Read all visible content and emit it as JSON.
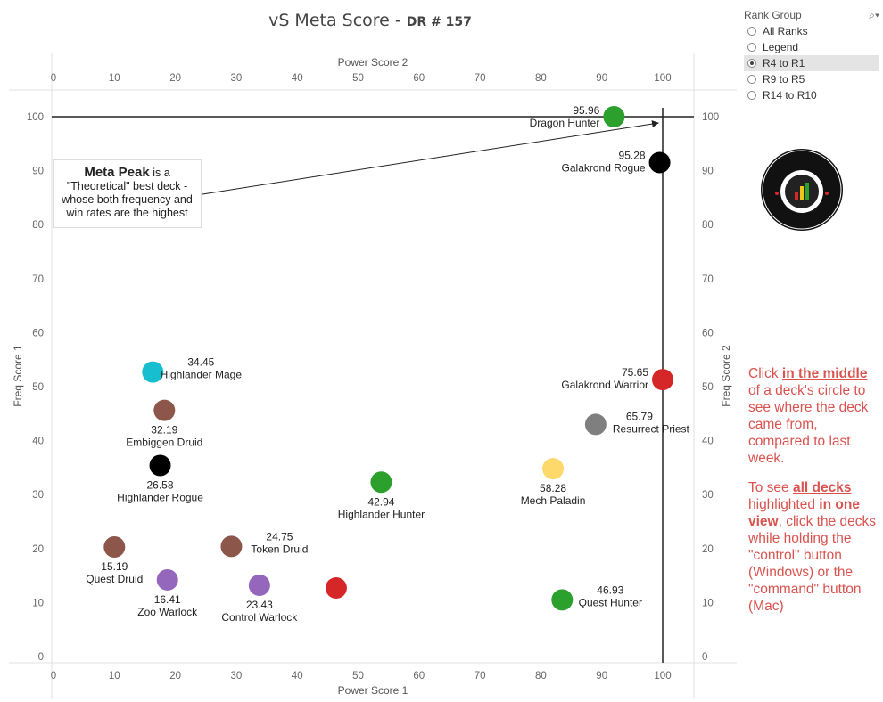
{
  "title": {
    "main": "vS Meta Score - ",
    "sub": "DR # 157"
  },
  "rank_group": {
    "label": "Rank Group",
    "options": [
      "All Ranks",
      "Legend",
      "R4 to R1",
      "R9 to R5",
      "R14 to R10"
    ],
    "selected": "R4 to R1"
  },
  "callout": {
    "strong": "Meta Peak",
    "text_after": " is a",
    "line2": "\"Theoretical\" best deck -",
    "line3": "whose both frequency and",
    "line4": "win rates are the highest"
  },
  "notes": {
    "p1_pre": "Click ",
    "p1_bold": "in the middle",
    "p1_post": " of a deck's circle to see where the deck came from, compared to last week.",
    "p2_pre": "To see ",
    "p2_bold1": "all decks",
    "p2_mid": " highlighted ",
    "p2_bold2": "in one view",
    "p2_post": ", click the decks while holding the \"control\" button (Windows) or the \"command\" button (Mac)"
  },
  "colors": {
    "hunter": "#2ca02c",
    "rogue": "#000000",
    "warrior": "#d62728",
    "priest": "#7f7f7f",
    "paladin": "#fdd86a",
    "mage": "#17becf",
    "druid": "#8c564b",
    "warlock": "#9467bd",
    "notes": "#d9534f"
  },
  "chart_data": {
    "type": "scatter",
    "title": "vS Meta Score - DR # 157",
    "xlabel_bottom": "Power Score 1",
    "xlabel_top": "Power Score 2",
    "ylabel_left": "Freq Score 1",
    "ylabel_right": "Freq Score 2",
    "xlim": [
      -5,
      105
    ],
    "ylim": [
      -1,
      105
    ],
    "xticks": [
      0,
      10,
      20,
      30,
      40,
      50,
      60,
      70,
      80,
      90,
      100
    ],
    "yticks": [
      0,
      10,
      20,
      30,
      40,
      50,
      60,
      70,
      80,
      90,
      100
    ],
    "reference_lines": {
      "x": 100,
      "y": 100
    },
    "points": [
      {
        "name": "Dragon Hunter",
        "score": "95.96",
        "x": 92,
        "y": 100,
        "color": "hunter",
        "label_side": "left-top"
      },
      {
        "name": "Galakrond Rogue",
        "score": "95.28",
        "x": 99.5,
        "y": 91.5,
        "color": "rogue",
        "label_side": "left"
      },
      {
        "name": "Galakrond Warrior",
        "score": "75.65",
        "x": 100,
        "y": 51.3,
        "color": "warrior",
        "label_side": "left"
      },
      {
        "name": "Resurrect Priest",
        "score": "65.79",
        "x": 89,
        "y": 43,
        "color": "priest",
        "label_side": "right-below"
      },
      {
        "name": "Mech Paladin",
        "score": "58.28",
        "x": 82,
        "y": 34.8,
        "color": "paladin",
        "label_side": "below"
      },
      {
        "name": "Highlander Hunter",
        "score": "42.94",
        "x": 53.8,
        "y": 32.3,
        "color": "hunter",
        "label_side": "below"
      },
      {
        "name": "Quest Hunter",
        "score": "46.93",
        "x": 83.5,
        "y": 10.5,
        "color": "hunter",
        "label_side": "right"
      },
      {
        "name": "Highlander Mage",
        "score": "34.45",
        "x": 16.3,
        "y": 52.7,
        "color": "mage",
        "label_side": "right"
      },
      {
        "name": "Embiggen Druid",
        "score": "32.19",
        "x": 18.2,
        "y": 45.6,
        "color": "druid",
        "label_side": "below"
      },
      {
        "name": "Highlander Rogue",
        "score": "26.58",
        "x": 17.5,
        "y": 35.4,
        "color": "rogue",
        "label_side": "below"
      },
      {
        "name": "Token Druid",
        "score": "24.75",
        "x": 29.2,
        "y": 20.4,
        "color": "druid",
        "label_side": "right"
      },
      {
        "name": "Quest Druid",
        "score": "15.19",
        "x": 10,
        "y": 20.3,
        "color": "druid",
        "label_side": "below"
      },
      {
        "name": "Zoo Warlock",
        "score": "16.41",
        "x": 18.7,
        "y": 14.2,
        "color": "warlock",
        "label_side": "below"
      },
      {
        "name": "Control Warlock",
        "score": "23.43",
        "x": 33.8,
        "y": 13.2,
        "color": "warlock",
        "label_side": "below"
      },
      {
        "name": "",
        "score": "",
        "x": 46.4,
        "y": 12.7,
        "color": "warrior",
        "label_side": "none"
      }
    ]
  }
}
